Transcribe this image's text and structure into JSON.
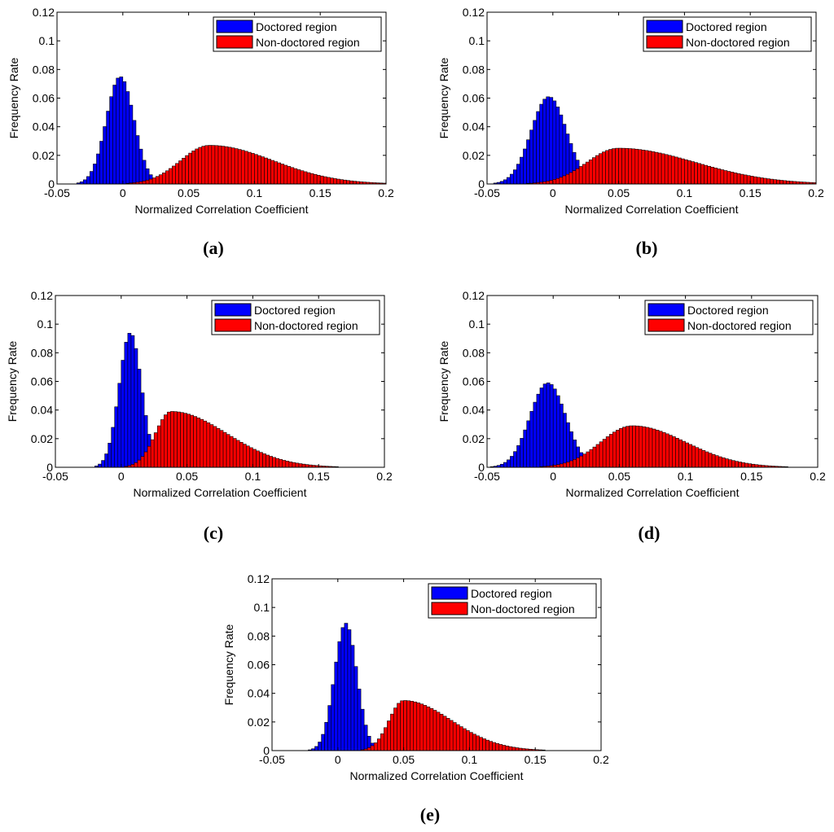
{
  "chart_data": [
    {
      "type": "bar",
      "panel": "a",
      "caption": "(a)",
      "xlabel": "Normalized Correlation Coefficient",
      "ylabel": "Frequency Rate",
      "xlim": [
        -0.05,
        0.2
      ],
      "ylim": [
        0,
        0.12
      ],
      "xticks": [
        "-0.05",
        "0",
        "0.05",
        "0.1",
        "0.15",
        "0.2"
      ],
      "yticks": [
        "0",
        "0.02",
        "0.04",
        "0.06",
        "0.08",
        "0.1",
        "0.12"
      ],
      "legend_position": "top-right",
      "series": [
        {
          "name": "Doctored region",
          "color": "#0000ff",
          "mean": -0.002,
          "sd": 0.0105,
          "peak": 0.075
        },
        {
          "name": "Non-doctored region",
          "color": "#ff0000",
          "mode": 0.066,
          "sd_left": 0.022,
          "sd_right": 0.048,
          "peak": 0.027
        }
      ]
    },
    {
      "type": "bar",
      "panel": "b",
      "caption": "(b)",
      "xlabel": "Normalized Correlation Coefficient",
      "ylabel": "Frequency Rate",
      "xlim": [
        -0.05,
        0.2
      ],
      "ylim": [
        0,
        0.12
      ],
      "xticks": [
        "-0.05",
        "0",
        "0.05",
        "0.1",
        "0.15",
        "0.2"
      ],
      "yticks": [
        "0",
        "0.02",
        "0.04",
        "0.06",
        "0.08",
        "0.1",
        "0.12"
      ],
      "legend_position": "top-right",
      "series": [
        {
          "name": "Doctored region",
          "color": "#0000ff",
          "mean": -0.003,
          "sd": 0.0135,
          "peak": 0.061
        },
        {
          "name": "Non-doctored region",
          "color": "#ff0000",
          "mode": 0.05,
          "sd_left": 0.024,
          "sd_right": 0.058,
          "peak": 0.025
        }
      ]
    },
    {
      "type": "bar",
      "panel": "c",
      "caption": "(c)",
      "xlabel": "Normalized Correlation Coefficient",
      "ylabel": "Frequency Rate",
      "xlim": [
        -0.05,
        0.2
      ],
      "ylim": [
        0,
        0.12
      ],
      "xticks": [
        "-0.05",
        "0",
        "0.05",
        "0.1",
        "0.15",
        "0.2"
      ],
      "yticks": [
        "0",
        "0.02",
        "0.04",
        "0.06",
        "0.08",
        "0.1",
        "0.12"
      ],
      "legend_position": "top-right",
      "series": [
        {
          "name": "Doctored region",
          "color": "#0000ff",
          "mean": 0.007,
          "sd": 0.0085,
          "peak": 0.094
        },
        {
          "name": "Non-doctored region",
          "color": "#ff0000",
          "mode": 0.038,
          "sd_left": 0.012,
          "sd_right": 0.042,
          "peak": 0.039
        }
      ]
    },
    {
      "type": "bar",
      "panel": "d",
      "caption": "(d)",
      "xlabel": "Normalized Correlation Coefficient",
      "ylabel": "Frequency Rate",
      "xlim": [
        -0.05,
        0.2
      ],
      "ylim": [
        0,
        0.12
      ],
      "xticks": [
        "-0.05",
        "0",
        "0.05",
        "0.1",
        "0.15",
        "0.2"
      ],
      "yticks": [
        "0",
        "0.02",
        "0.04",
        "0.06",
        "0.08",
        "0.1",
        "0.12"
      ],
      "legend_position": "top-right",
      "series": [
        {
          "name": "Doctored region",
          "color": "#0000ff",
          "mean": -0.004,
          "sd": 0.0135,
          "peak": 0.059
        },
        {
          "name": "Non-doctored region",
          "color": "#ff0000",
          "mode": 0.06,
          "sd_left": 0.024,
          "sd_right": 0.04,
          "peak": 0.029
        }
      ]
    },
    {
      "type": "bar",
      "panel": "e",
      "caption": "(e)",
      "xlabel": "Normalized Correlation Coefficient",
      "ylabel": "Frequency Rate",
      "xlim": [
        -0.05,
        0.2
      ],
      "ylim": [
        0,
        0.12
      ],
      "xticks": [
        "-0.05",
        "0",
        "0.05",
        "0.1",
        "0.15",
        "0.2"
      ],
      "yticks": [
        "0",
        "0.02",
        "0.04",
        "0.06",
        "0.08",
        "0.1",
        "0.12"
      ],
      "legend_position": "top-right",
      "series": [
        {
          "name": "Doctored region",
          "color": "#0000ff",
          "mean": 0.006,
          "sd": 0.0085,
          "peak": 0.089
        },
        {
          "name": "Non-doctored region",
          "color": "#ff0000",
          "mode": 0.05,
          "sd_left": 0.011,
          "sd_right": 0.036,
          "peak": 0.035
        }
      ]
    }
  ]
}
